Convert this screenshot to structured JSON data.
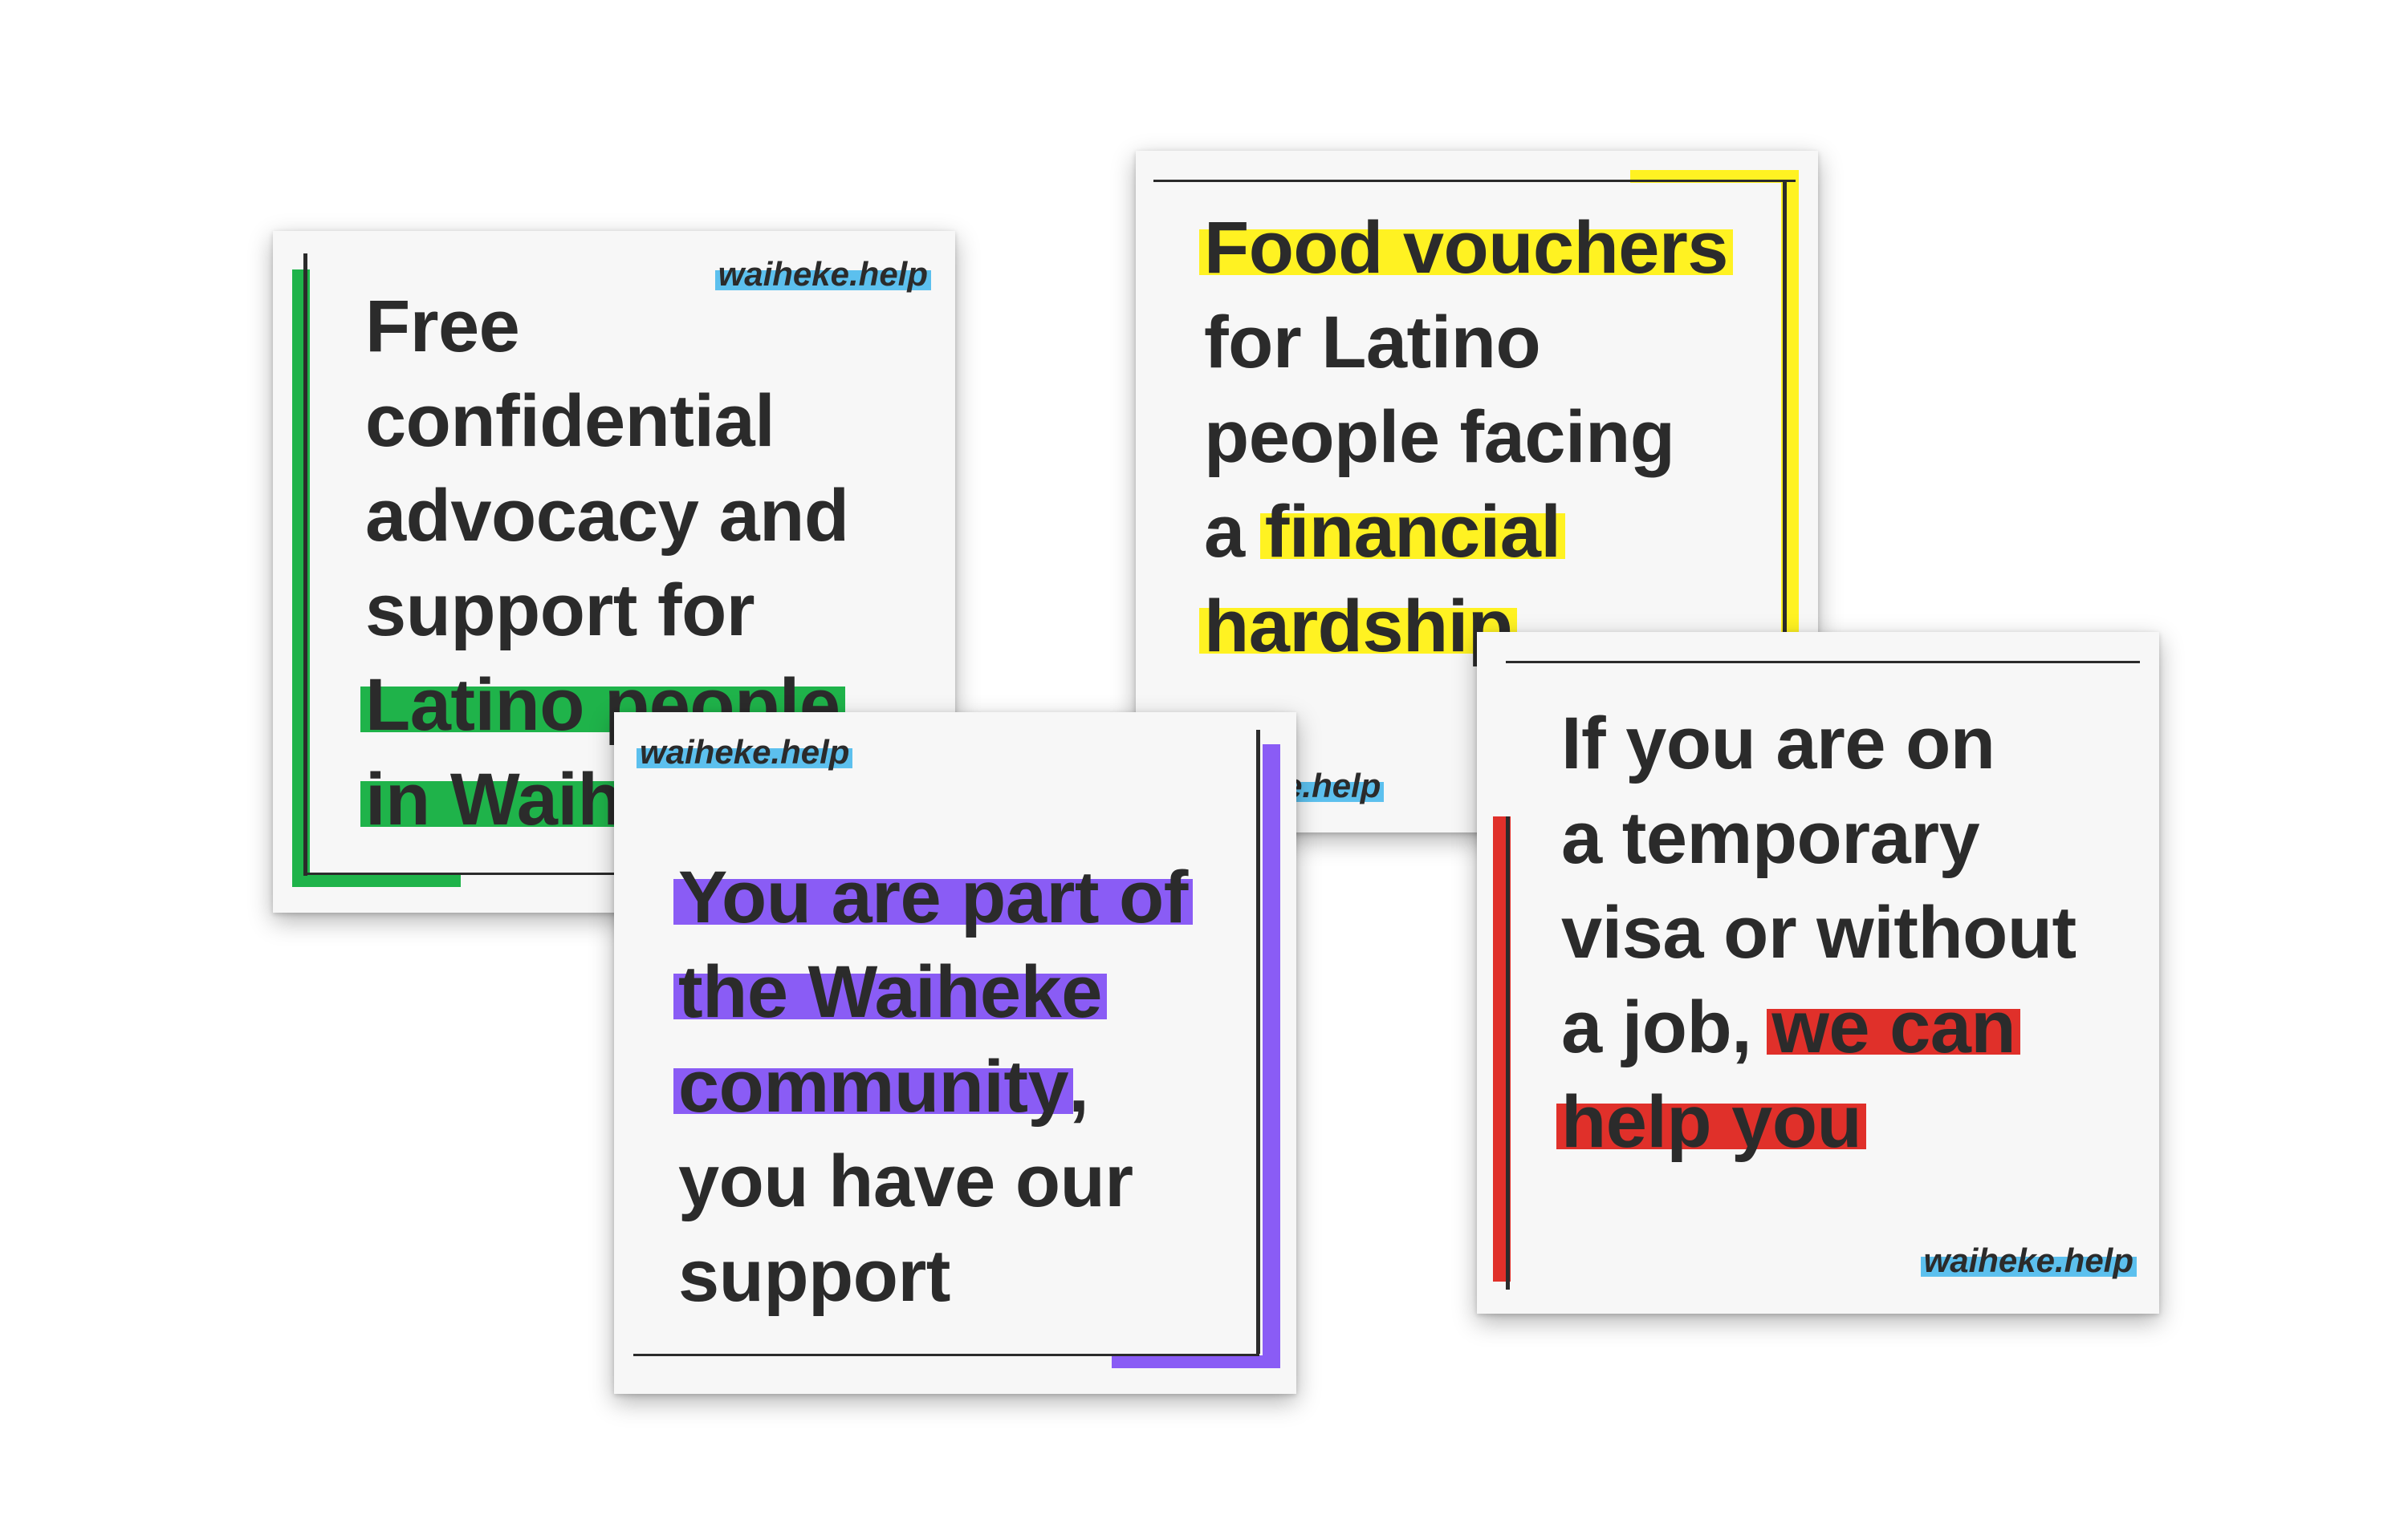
{
  "brand_text": "waiheke.help",
  "colors": {
    "card_background": "#f7f7f7",
    "text": "#2b2b2b",
    "green": "#1fb34a",
    "yellow": "#fff222",
    "purple": "#8a5cf5",
    "red": "#e0302a",
    "brand_highlight": "#5cc0ee"
  },
  "cards": {
    "green": {
      "accent": "green",
      "line1": "Free",
      "line2": "confidential",
      "line3": "advocacy and",
      "line4": "support for",
      "highlight": "Latino people in Waiheke"
    },
    "yellow": {
      "accent": "yellow",
      "highlight1": "Food vouchers",
      "plain1": "for Latino",
      "plain2": "people facing",
      "plain3": "a ",
      "highlight2": "financial",
      "highlight3": "hardship"
    },
    "red": {
      "accent": "red",
      "plain1": "If you are on",
      "plain2": "a temporary",
      "plain3": "visa or without",
      "plain4": "a job, ",
      "highlight1": "we can",
      "highlight2": "help you"
    },
    "purple": {
      "accent": "purple",
      "highlight1": "You are part of",
      "highlight2": "the Waiheke",
      "highlight3": "community",
      "plain1": ",",
      "plain2": "you have our",
      "plain3": "support"
    }
  }
}
